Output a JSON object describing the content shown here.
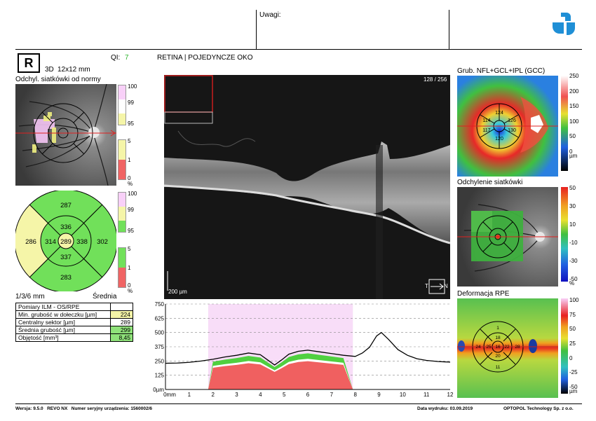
{
  "header": {
    "notes_label": "Uwagi:"
  },
  "left": {
    "eye": "R",
    "scan_type": "3D",
    "scan_size": "12x12 mm",
    "qi_label": "QI:",
    "qi_value": "7",
    "deviation_title": "Odchyl. siatkówki od normy",
    "scale_top": [
      "100",
      "99",
      "95"
    ],
    "scale_bottom": [
      "5",
      "1",
      "0",
      "%"
    ],
    "sectors": {
      "center": "289",
      "inner_top": "336",
      "inner_left": "314",
      "inner_right": "338",
      "inner_bottom": "337",
      "outer_top": "287",
      "outer_left": "286",
      "outer_right": "302",
      "outer_bottom": "283"
    },
    "rings_label": "1/3/6 mm",
    "mean_label": "Średnia",
    "measurements": [
      {
        "label": "Pomiary ILM - OS/RPE",
        "value": "",
        "cls": ""
      },
      {
        "label": "Min. grubość w dołeczku [µm]",
        "value": "224",
        "cls": "hy"
      },
      {
        "label": "Centralny sektor [µm]",
        "value": "289",
        "cls": ""
      },
      {
        "label": "Średnia grubość [µm]",
        "value": "299",
        "cls": "hl"
      },
      {
        "label": "Objętość [mm³]",
        "value": "8,45",
        "cls": "hl"
      }
    ]
  },
  "center": {
    "title": "RETINA | POJEDYNCZE OKO",
    "frame": "128 / 256",
    "scale_bar": "200 µm",
    "t_label": "T",
    "n_label": "N"
  },
  "chart_data": {
    "type": "line",
    "xlabel": "mm",
    "ylabel": "µm",
    "x_ticks": [
      "0mm",
      "1",
      "2",
      "3",
      "4",
      "5",
      "6",
      "7",
      "8",
      "9",
      "10",
      "11",
      "12"
    ],
    "y_ticks": [
      "0µm",
      "125",
      "250",
      "375",
      "500",
      "625",
      "750"
    ],
    "xlim": [
      0,
      12
    ],
    "ylim": [
      0,
      750
    ],
    "shaded_range": [
      1.8,
      7.9
    ],
    "series": [
      {
        "x": [
          0,
          0.5,
          1,
          1.5,
          2,
          2.5,
          3,
          3.5,
          4,
          4.3,
          4.6,
          4.9,
          5.2,
          5.6,
          6,
          6.5,
          7,
          7.5,
          8,
          8.3,
          8.6,
          8.9,
          9.1,
          9.4,
          9.8,
          10.2,
          10.6,
          11,
          11.5,
          12
        ],
        "y": [
          230,
          232,
          238,
          250,
          265,
          285,
          300,
          320,
          305,
          260,
          215,
          260,
          310,
          335,
          345,
          330,
          315,
          300,
          290,
          320,
          370,
          470,
          500,
          440,
          350,
          300,
          270,
          255,
          245,
          240
        ]
      }
    ]
  },
  "right": {
    "gcc_title": "Grub. NFL+GCL+IPL (GCC)",
    "gcc_scale": [
      "250",
      "200",
      "150",
      "100",
      "50",
      "0",
      "µm"
    ],
    "gcc_sectors": {
      "top": "124",
      "upper_left": "114",
      "upper_right": "126",
      "lower_left": "117",
      "lower_right": "130",
      "bottom": "120"
    },
    "dev_title": "Odchylenie siatkówki",
    "dev_scale": [
      "50",
      "30",
      "10",
      "-10",
      "-30",
      "-50",
      "%"
    ],
    "rpe_title": "Deformacja RPE",
    "rpe_scale": [
      "100",
      "75",
      "50",
      "25",
      "0",
      "-25",
      "-50",
      "µm"
    ],
    "rpe_sectors": {
      "top": "1",
      "mid_top": "18",
      "left": "24",
      "inner_left": "25",
      "center": "16",
      "inner_right": "22",
      "right": "28",
      "mid_bottom": "20",
      "bottom": "11"
    }
  },
  "footer": {
    "version_label": "Wersja:",
    "version": "9.5.0",
    "device": "REVO NX",
    "serial_label": "Numer seryjny urządzenia:",
    "serial": "1560002/6",
    "print_label": "Data wydruku:",
    "print_date": "03.09.2019",
    "company": "OPTOPOL Technology Sp. z o.o."
  }
}
